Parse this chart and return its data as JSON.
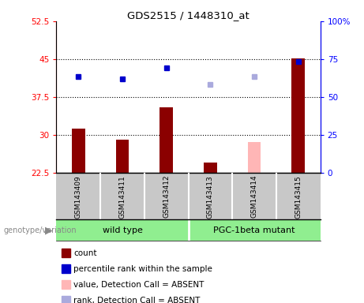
{
  "title": "GDS2515 / 1448310_at",
  "samples": [
    "GSM143409",
    "GSM143411",
    "GSM143412",
    "GSM143413",
    "GSM143414",
    "GSM143415"
  ],
  "bar_values": [
    31.2,
    29.0,
    35.5,
    24.5,
    null,
    45.2
  ],
  "bar_values_absent": [
    null,
    null,
    null,
    null,
    28.5,
    null
  ],
  "bar_color_present": "#8B0000",
  "bar_color_absent": "#FFB6B6",
  "dot_values": [
    41.5,
    41.0,
    43.2,
    null,
    null,
    44.5
  ],
  "dot_values_absent": [
    null,
    null,
    null,
    40.0,
    41.5,
    null
  ],
  "dot_color_present": "#0000CC",
  "dot_color_absent": "#AAAADD",
  "ylim_left": [
    22.5,
    52.5
  ],
  "ylim_right": [
    0,
    100
  ],
  "yticks_left": [
    22.5,
    30.0,
    37.5,
    45.0,
    52.5
  ],
  "yticks_right": [
    0,
    25,
    50,
    75,
    100
  ],
  "ytick_labels_left": [
    "22.5",
    "30",
    "37.5",
    "45",
    "52.5"
  ],
  "ytick_labels_right": [
    "0",
    "25",
    "50",
    "75",
    "100%"
  ],
  "hlines": [
    30.0,
    37.5,
    45.0
  ],
  "group_wt_label": "wild type",
  "group_pgc_label": "PGC-1beta mutant",
  "group_color": "#90EE90",
  "genotype_label": "genotype/variation",
  "legend_items": [
    {
      "label": "count",
      "color": "#8B0000"
    },
    {
      "label": "percentile rank within the sample",
      "color": "#0000CC"
    },
    {
      "label": "value, Detection Call = ABSENT",
      "color": "#FFB6B6"
    },
    {
      "label": "rank, Detection Call = ABSENT",
      "color": "#AAAADD"
    }
  ],
  "background_color": "#FFFFFF",
  "plot_bg_color": "#FFFFFF",
  "tick_area_color": "#C8C8C8",
  "bar_width": 0.3
}
